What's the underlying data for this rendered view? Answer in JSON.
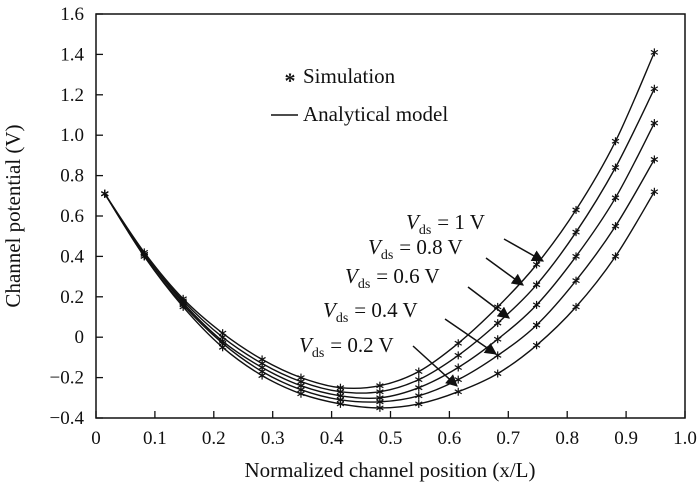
{
  "chart_data": {
    "type": "line",
    "title": "",
    "xlabel": "Normalized channel position (x/L)",
    "ylabel": "Channel potential (V)",
    "xlim": [
      0,
      1.0
    ],
    "ylim": [
      -0.4,
      1.6
    ],
    "xticks": [
      "0",
      "0.1",
      "0.2",
      "0.3",
      "0.4",
      "0.5",
      "0.6",
      "0.7",
      "0.8",
      "0.9",
      "1.0"
    ],
    "yticks": [
      "−0.4",
      "−0.2",
      "0",
      "0.2",
      "0.4",
      "0.6",
      "0.8",
      "1.0",
      "1.2",
      "1.4",
      "1.6"
    ],
    "grid": false,
    "legend": {
      "position": "top-left",
      "entries": [
        {
          "marker": "asterisk",
          "label": "Simulation"
        },
        {
          "marker": "line",
          "label": "Analytical model"
        }
      ]
    },
    "sim_x": [
      0.015,
      0.082,
      0.148,
      0.215,
      0.282,
      0.348,
      0.415,
      0.482,
      0.548,
      0.615,
      0.682,
      0.748,
      0.815,
      0.882,
      0.948
    ],
    "series": [
      {
        "vds_label": "0.2 V",
        "sim_y": [
          0.71,
          0.4,
          0.15,
          -0.05,
          -0.19,
          -0.28,
          -0.33,
          -0.35,
          -0.33,
          -0.27,
          -0.18,
          -0.04,
          0.15,
          0.4,
          0.72
        ]
      },
      {
        "vds_label": "0.4 V",
        "sim_y": [
          0.71,
          0.4,
          0.16,
          -0.03,
          -0.17,
          -0.26,
          -0.31,
          -0.32,
          -0.29,
          -0.21,
          -0.09,
          0.06,
          0.28,
          0.55,
          0.88
        ]
      },
      {
        "vds_label": "0.6 V",
        "sim_y": [
          0.71,
          0.41,
          0.17,
          -0.02,
          -0.15,
          -0.24,
          -0.29,
          -0.3,
          -0.25,
          -0.15,
          -0.01,
          0.16,
          0.4,
          0.69,
          1.06
        ]
      },
      {
        "vds_label": "0.8 V",
        "sim_y": [
          0.71,
          0.41,
          0.18,
          0.0,
          -0.13,
          -0.22,
          -0.27,
          -0.27,
          -0.21,
          -0.09,
          0.07,
          0.26,
          0.52,
          0.84,
          1.23
        ]
      },
      {
        "vds_label": "1 V",
        "sim_y": [
          0.71,
          0.42,
          0.19,
          0.02,
          -0.11,
          -0.2,
          -0.25,
          -0.24,
          -0.17,
          -0.03,
          0.15,
          0.36,
          0.63,
          0.97,
          1.41
        ]
      }
    ],
    "annotations": [
      {
        "prefix": "V",
        "sub": "ds",
        "value": "= 1 V"
      },
      {
        "prefix": "V",
        "sub": "ds",
        "value": "= 0.8 V"
      },
      {
        "prefix": "V",
        "sub": "ds",
        "value": "= 0.6 V"
      },
      {
        "prefix": "V",
        "sub": "ds",
        "value": "= 0.4 V"
      },
      {
        "prefix": "V",
        "sub": "ds",
        "value": "= 0.2 V"
      }
    ]
  }
}
